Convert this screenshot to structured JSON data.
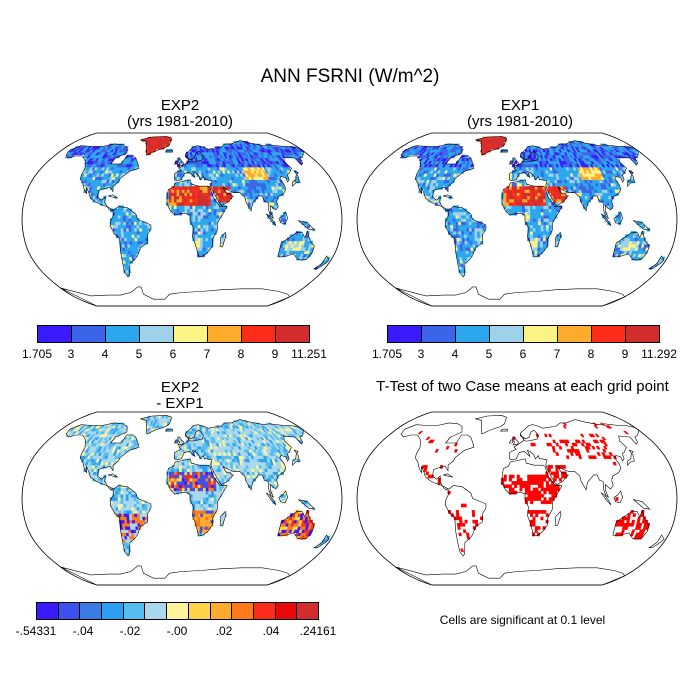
{
  "title": "ANN FSRNI (W/m^2)",
  "panels": {
    "top_left": {
      "line1": "EXP2",
      "line2": "(yrs 1981-2010)"
    },
    "top_right": {
      "line1": "EXP1",
      "line2": "(yrs 1981-2010)"
    },
    "bottom_left": {
      "line1": "EXP2",
      "line2": "- EXP1"
    },
    "bottom_right": {
      "line1": "T-Test of two Case means at each grid point"
    }
  },
  "colorbars": {
    "cb1": {
      "colors": [
        "#3a1aff",
        "#3c64e8",
        "#2ca7ee",
        "#9fd2ea",
        "#fbf484",
        "#fdab2d",
        "#fb2d1a",
        "#d12d2d"
      ],
      "labels": [
        "1.705",
        "3",
        "4",
        "5",
        "6",
        "7",
        "8",
        "9",
        "11.251"
      ]
    },
    "cb2": {
      "colors": [
        "#3a1aff",
        "#3c64e8",
        "#2ca7ee",
        "#9fd2ea",
        "#fbf484",
        "#fdab2d",
        "#fb2d1a",
        "#d12d2d"
      ],
      "labels": [
        "1.705",
        "3",
        "4",
        "5",
        "6",
        "7",
        "8",
        "9",
        "11.292"
      ]
    },
    "cb3": {
      "colors": [
        "#3a1aff",
        "#3c50ee",
        "#3c7ae6",
        "#2c9ff0",
        "#56bdf0",
        "#a9d8ec",
        "#fdf49a",
        "#fdd34a",
        "#fdab2d",
        "#fb7a1a",
        "#fb2d1a",
        "#e80a0a",
        "#d12d2d"
      ],
      "labels": [
        "-.54331",
        "-.04",
        "-.02",
        "-.00",
        ".02",
        ".04",
        ".24161"
      ]
    }
  },
  "note": "Cells are significant at 0.1 level",
  "legend_colors": {
    "land_cool": "#2ca7ee",
    "land_pale": "#9fd2ea",
    "land_dark": "#3c64e8",
    "desert": "#fb2d1a",
    "desert_hot": "#d12d2d",
    "signif": "#ff0000"
  }
}
